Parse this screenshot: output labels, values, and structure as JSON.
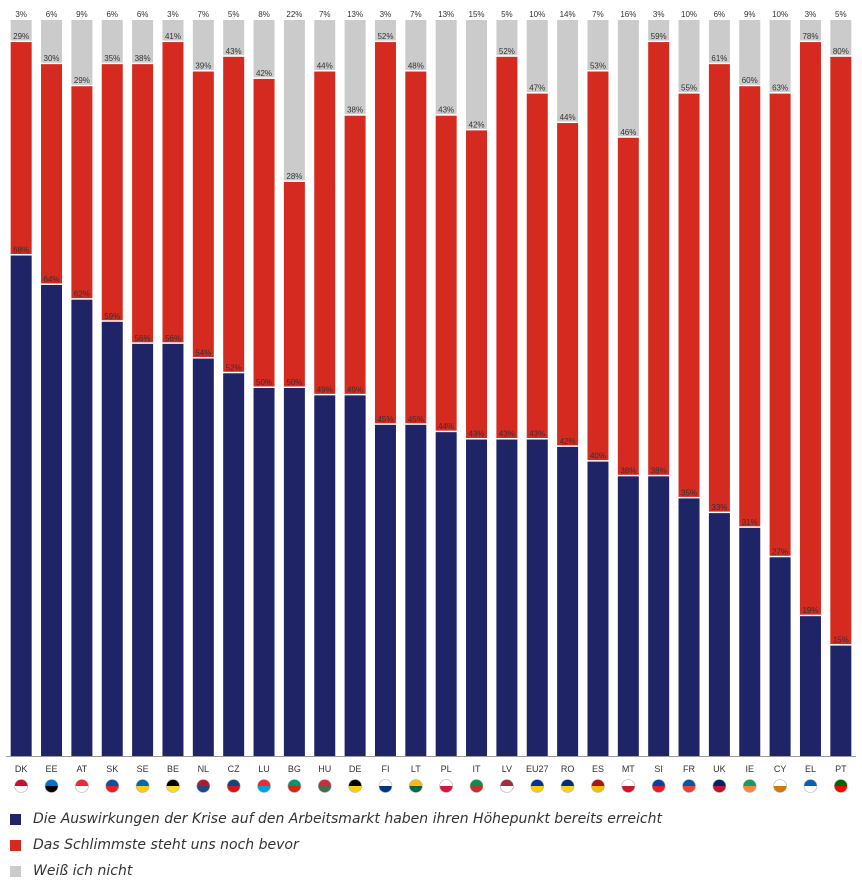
{
  "chart_data": {
    "type": "bar",
    "stacked": true,
    "orientation": "vertical",
    "categories": [
      "DK",
      "EE",
      "AT",
      "SK",
      "SE",
      "BE",
      "NL",
      "CZ",
      "LU",
      "BG",
      "HU",
      "DE",
      "FI",
      "LT",
      "PL",
      "IT",
      "LV",
      "EU27",
      "RO",
      "ES",
      "MT",
      "SI",
      "FR",
      "UK",
      "IE",
      "CY",
      "EL",
      "PT"
    ],
    "series": [
      {
        "name": "Die Auswirkungen der Krise auf den Arbeitsmarkt haben ihren Höhepunkt bereits erreicht",
        "color": "#1f2466",
        "values": [
          68,
          64,
          62,
          59,
          56,
          56,
          54,
          52,
          50,
          50,
          49,
          49,
          45,
          45,
          44,
          43,
          43,
          43,
          42,
          40,
          38,
          38,
          35,
          33,
          31,
          27,
          19,
          15
        ]
      },
      {
        "name": "Das Schlimmste steht uns noch bevor",
        "color": "#d42a20",
        "values": [
          29,
          30,
          29,
          35,
          38,
          41,
          39,
          43,
          42,
          28,
          44,
          38,
          52,
          48,
          43,
          42,
          52,
          47,
          44,
          53,
          46,
          59,
          55,
          61,
          60,
          63,
          78,
          80
        ]
      },
      {
        "name": "Weiß ich nicht",
        "color": "#cbcbcb",
        "values": [
          3,
          6,
          9,
          6,
          6,
          3,
          7,
          5,
          8,
          22,
          7,
          13,
          3,
          7,
          13,
          15,
          5,
          10,
          14,
          7,
          16,
          3,
          10,
          6,
          9,
          10,
          3,
          5
        ]
      }
    ],
    "value_labels": {
      "series1": [
        "68%",
        "64%",
        "62%",
        "59%",
        "56%",
        "56%",
        "54%",
        "52%",
        "50%",
        "50%",
        "49%",
        "49%",
        "45%",
        "45%",
        "44%",
        "43%",
        "43%",
        "43%",
        "42%",
        "40%",
        "38%",
        "38%",
        "35%",
        "33%",
        "31%",
        "27%",
        "19%",
        "15%"
      ],
      "series2": [
        "29%",
        "30%",
        "29%",
        "35%",
        "38%",
        "41%",
        "39%",
        "43%",
        "42%",
        "28%",
        "44%",
        "38%",
        "52%",
        "48%",
        "43%",
        "42%",
        "52%",
        "47%",
        "44%",
        "53%",
        "46%",
        "59%",
        "55%",
        "61%",
        "60%",
        "63%",
        "78%",
        "80%"
      ],
      "series3": [
        "3%",
        "6%",
        "9%",
        "6%",
        "6%",
        "3%",
        "7%",
        "5%",
        "8%",
        "22%",
        "7%",
        "13%",
        "3%",
        "7%",
        "13%",
        "15%",
        "5%",
        "10%",
        "14%",
        "7%",
        "16%",
        "3%",
        "10%",
        "6%",
        "9%",
        "10%",
        "3%",
        "5%"
      ]
    },
    "flag_colors": [
      [
        "#c8102e",
        "#ffffff"
      ],
      [
        "#0072ce",
        "#000000"
      ],
      [
        "#ed2939",
        "#ffffff"
      ],
      [
        "#0b4ea2",
        "#ee1c25"
      ],
      [
        "#006aa7",
        "#fecc00"
      ],
      [
        "#000000",
        "#fdda24"
      ],
      [
        "#ae1c28",
        "#21468b"
      ],
      [
        "#11457e",
        "#d7141a"
      ],
      [
        "#ed2939",
        "#00a1de"
      ],
      [
        "#00966e",
        "#d62612"
      ],
      [
        "#cd2a3e",
        "#436f4d"
      ],
      [
        "#000000",
        "#ffce00"
      ],
      [
        "#ffffff",
        "#003580"
      ],
      [
        "#fdb913",
        "#006a44"
      ],
      [
        "#ffffff",
        "#dc143c"
      ],
      [
        "#009246",
        "#ce2b37"
      ],
      [
        "#9e3039",
        "#ffffff"
      ],
      [
        "#003399",
        "#ffcc00"
      ],
      [
        "#002b7f",
        "#fcd116"
      ],
      [
        "#aa151b",
        "#f1bf00"
      ],
      [
        "#ffffff",
        "#cf142b"
      ],
      [
        "#0b3fa3",
        "#ed1c24"
      ],
      [
        "#0055a4",
        "#ef4135"
      ],
      [
        "#012169",
        "#c8102e"
      ],
      [
        "#169b62",
        "#ff883e"
      ],
      [
        "#ffffff",
        "#d57800"
      ],
      [
        "#0d5eaf",
        "#ffffff"
      ],
      [
        "#006600",
        "#ff0000"
      ]
    ],
    "ylim": [
      0,
      100
    ],
    "legend_position": "bottom",
    "grid": false,
    "title": "",
    "xlabel": "",
    "ylabel": ""
  },
  "legend": [
    {
      "label": "Die Auswirkungen der Krise auf den Arbeitsmarkt haben ihren Höhepunkt bereits erreicht",
      "color": "#1f2466"
    },
    {
      "label": "Das Schlimmste steht uns noch bevor",
      "color": "#d42a20"
    },
    {
      "label": "Weiß ich nicht",
      "color": "#cbcbcb"
    }
  ]
}
